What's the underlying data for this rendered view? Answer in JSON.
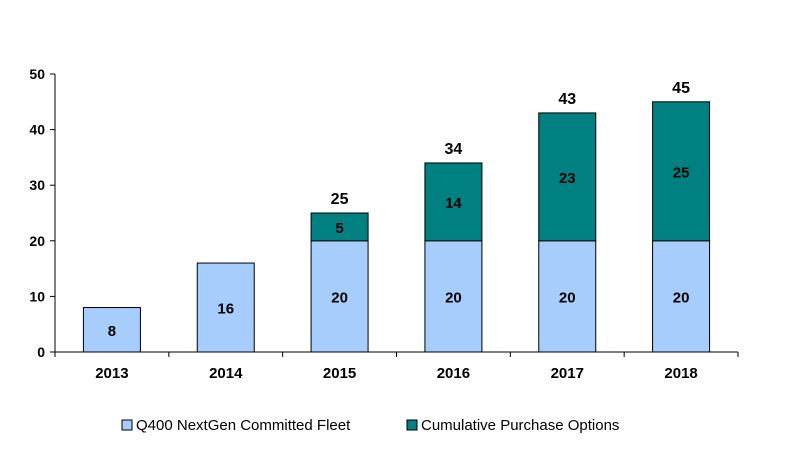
{
  "chart_data": {
    "type": "bar",
    "stacked": true,
    "categories": [
      "2013",
      "2014",
      "2015",
      "2016",
      "2017",
      "2018"
    ],
    "series": [
      {
        "name": "Q400 NextGen Committed Fleet",
        "values": [
          8,
          16,
          20,
          20,
          20,
          20
        ],
        "color": "#a6cdfb"
      },
      {
        "name": "Cumulative Purchase Options",
        "values": [
          0,
          0,
          5,
          14,
          23,
          25
        ],
        "color": "#008080"
      }
    ],
    "totals": [
      8,
      16,
      25,
      34,
      43,
      45
    ],
    "ylim": [
      0,
      50
    ],
    "yticks": [
      0,
      10,
      20,
      30,
      40,
      50
    ],
    "legend_position": "bottom",
    "grid": false
  }
}
